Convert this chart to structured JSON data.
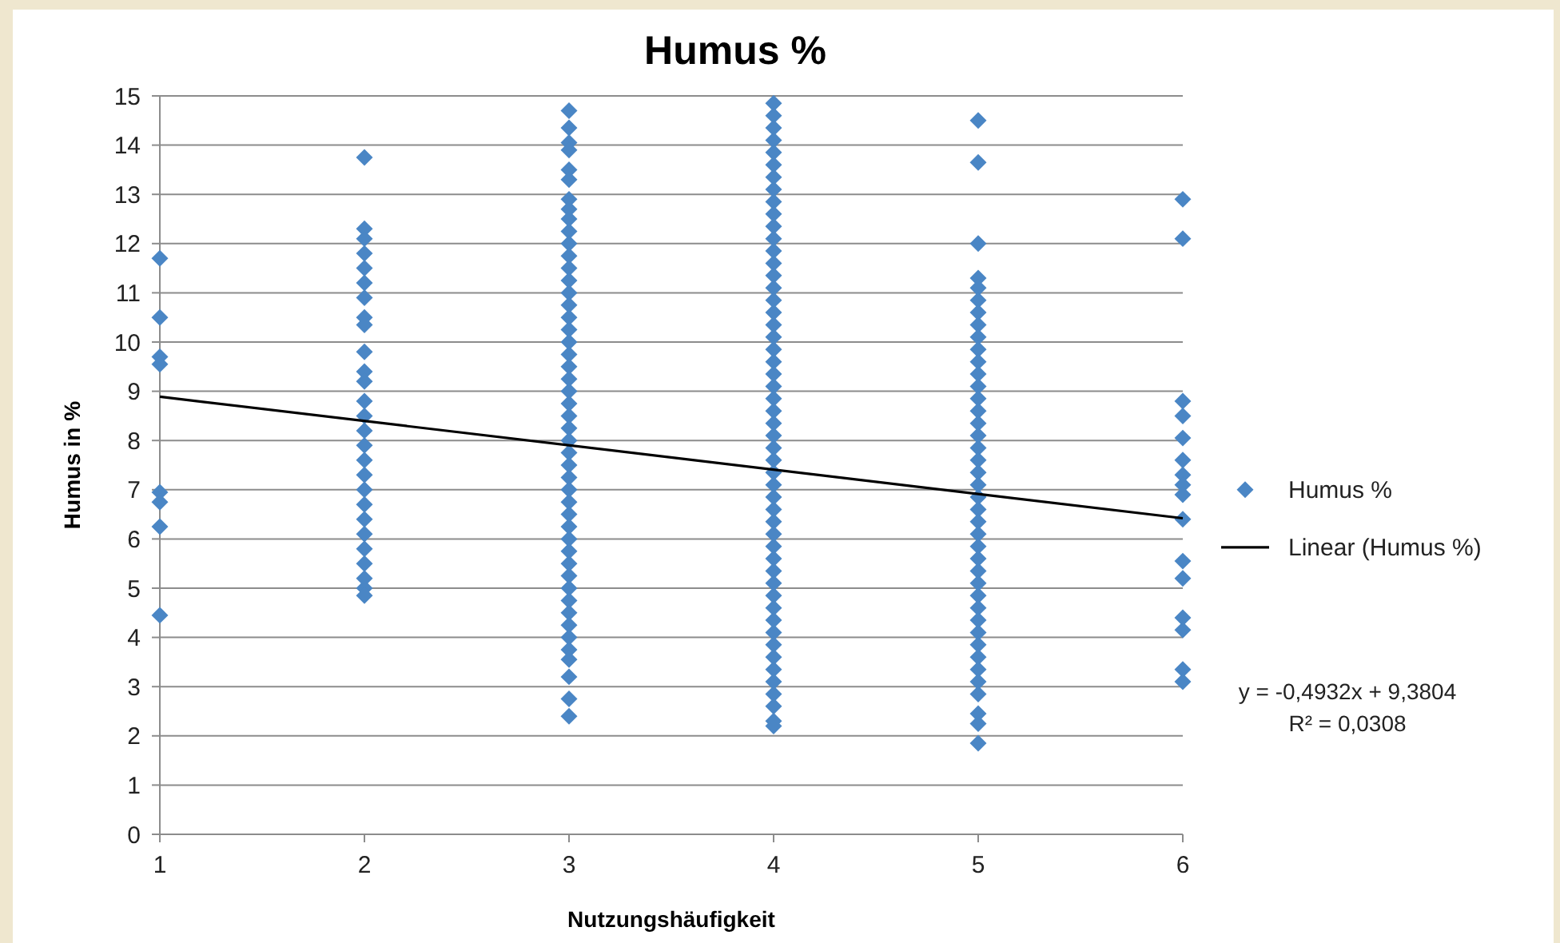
{
  "chart_data": {
    "type": "scatter",
    "title": "Humus %",
    "xlabel": "Nutzungshäufigkeit",
    "ylabel": "Humus in %",
    "xlim": [
      1,
      6
    ],
    "xticks": [
      1,
      2,
      3,
      4,
      5,
      6
    ],
    "ylim": [
      0,
      15
    ],
    "yticks": [
      0,
      1,
      2,
      3,
      4,
      5,
      6,
      7,
      8,
      9,
      10,
      11,
      12,
      13,
      14,
      15
    ],
    "grid": "y",
    "legend": "right",
    "marker": "diamond",
    "series": [
      {
        "name": "Humus %",
        "color": "#4a86c5",
        "x": [
          1,
          1,
          1,
          1,
          1,
          1,
          1,
          1,
          2,
          2,
          2,
          2,
          2,
          2,
          2,
          2,
          2,
          2,
          2,
          2,
          2,
          2,
          2,
          2,
          2,
          2,
          2,
          2,
          2,
          2,
          2,
          2,
          2,
          2,
          2,
          3,
          3,
          3,
          3,
          3,
          3,
          3,
          3,
          3,
          3,
          3,
          3,
          3,
          3,
          3,
          3,
          3,
          3,
          3,
          3,
          3,
          3,
          3,
          3,
          3,
          3,
          3,
          3,
          3,
          3,
          3,
          3,
          3,
          3,
          3,
          3,
          3,
          3,
          3,
          3,
          3,
          3,
          3,
          3,
          3,
          3,
          3,
          3,
          4,
          4,
          4,
          4,
          4,
          4,
          4,
          4,
          4,
          4,
          4,
          4,
          4,
          4,
          4,
          4,
          4,
          4,
          4,
          4,
          4,
          4,
          4,
          4,
          4,
          4,
          4,
          4,
          4,
          4,
          4,
          4,
          4,
          4,
          4,
          4,
          4,
          4,
          4,
          4,
          4,
          4,
          4,
          4,
          4,
          4,
          4,
          4,
          4,
          4,
          4,
          4,
          5,
          5,
          5,
          5,
          5,
          5,
          5,
          5,
          5,
          5,
          5,
          5,
          5,
          5,
          5,
          5,
          5,
          5,
          5,
          5,
          5,
          5,
          5,
          5,
          5,
          5,
          5,
          5,
          5,
          5,
          5,
          5,
          5,
          5,
          5,
          5,
          5,
          5,
          5,
          5,
          5,
          6,
          6,
          6,
          6,
          6,
          6,
          6,
          6,
          6,
          6,
          6,
          6,
          6,
          6,
          6,
          6
        ],
        "values": [
          11.7,
          10.5,
          9.7,
          9.55,
          6.95,
          6.75,
          6.25,
          4.45,
          13.75,
          12.3,
          12.1,
          11.8,
          11.5,
          11.2,
          10.9,
          10.5,
          10.35,
          9.8,
          9.4,
          9.2,
          8.8,
          8.5,
          8.2,
          7.9,
          7.6,
          7.3,
          7.0,
          6.7,
          6.4,
          6.1,
          5.8,
          5.5,
          5.2,
          5.0,
          4.85,
          14.7,
          14.35,
          14.05,
          13.9,
          13.5,
          13.3,
          12.9,
          12.7,
          12.5,
          12.25,
          12,
          11.75,
          11.5,
          11.25,
          11,
          10.75,
          10.5,
          10.25,
          10,
          9.75,
          9.5,
          9.25,
          9,
          8.75,
          8.5,
          8.25,
          8,
          7.75,
          7.5,
          7.25,
          7,
          6.75,
          6.5,
          6.25,
          6,
          5.75,
          5.5,
          5.25,
          5,
          4.75,
          4.5,
          4.25,
          4,
          3.75,
          3.55,
          3.2,
          2.75,
          2.4,
          14.85,
          14.6,
          14.35,
          14.1,
          13.85,
          13.6,
          13.35,
          13.1,
          12.85,
          12.6,
          12.35,
          12.1,
          11.85,
          11.6,
          11.35,
          11.1,
          10.85,
          10.6,
          10.35,
          10.1,
          9.85,
          9.6,
          9.35,
          9.1,
          8.85,
          8.6,
          8.35,
          8.1,
          7.85,
          7.6,
          7.35,
          7.1,
          6.85,
          6.6,
          6.35,
          6.1,
          5.85,
          5.6,
          5.35,
          5.1,
          4.85,
          4.6,
          4.35,
          4.1,
          3.85,
          3.6,
          3.35,
          3.1,
          2.85,
          2.6,
          2.3,
          2.2,
          14.5,
          13.65,
          12,
          11.3,
          11.1,
          10.85,
          10.6,
          10.35,
          10.1,
          9.85,
          9.6,
          9.35,
          9.1,
          8.85,
          8.6,
          8.35,
          8.1,
          7.85,
          7.6,
          7.35,
          7.1,
          6.85,
          6.6,
          6.35,
          6.1,
          5.85,
          5.6,
          5.35,
          5.1,
          4.85,
          4.6,
          4.35,
          4.1,
          3.85,
          3.6,
          3.35,
          3.1,
          2.85,
          2.45,
          2.25,
          1.85,
          12.9,
          12.1,
          8.8,
          8.5,
          8.05,
          7.6,
          7.3,
          7.1,
          6.9,
          6.4,
          5.55,
          5.2,
          4.4,
          4.15,
          3.35,
          3.1
        ]
      },
      {
        "name": "Linear (Humus %)",
        "type": "line",
        "color": "#000000",
        "marker": "none",
        "x": [
          1,
          6
        ],
        "values": [
          8.89,
          6.42
        ]
      }
    ],
    "annotations": [
      "y = -0,4932x + 9,3804",
      "R² = 0,0308"
    ]
  }
}
